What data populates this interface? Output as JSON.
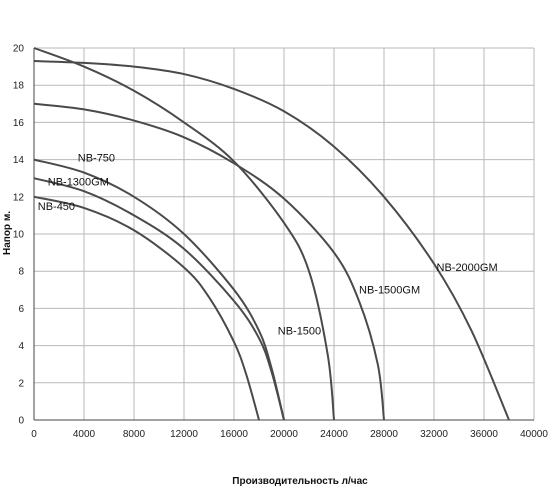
{
  "chart_data": {
    "type": "line",
    "title": "",
    "xlabel": "Производительность  л/час",
    "ylabel": "Напор м.",
    "xlim": [
      0,
      40000
    ],
    "ylim": [
      0,
      20
    ],
    "x_ticks": [
      0,
      4000,
      8000,
      12000,
      16000,
      20000,
      24000,
      28000,
      32000,
      36000,
      40000
    ],
    "y_ticks": [
      0,
      2,
      4,
      6,
      8,
      10,
      12,
      14,
      16,
      18,
      20
    ],
    "grid": true,
    "legend": "inline-labels",
    "series": [
      {
        "name": "NB-450",
        "x": [
          0,
          4000,
          8000,
          12000,
          14000,
          16000,
          17000,
          18000
        ],
        "y": [
          12,
          11.4,
          10.2,
          8.2,
          6.6,
          4.2,
          2.4,
          0
        ]
      },
      {
        "name": "NB-1300GM",
        "x": [
          0,
          4000,
          8000,
          12000,
          16000,
          18000,
          19000,
          20000
        ],
        "y": [
          13,
          12.3,
          11,
          9.2,
          6.4,
          4.4,
          2.6,
          0
        ]
      },
      {
        "name": "NB-750",
        "x": [
          0,
          4000,
          8000,
          12000,
          16000,
          18000,
          19000,
          20000
        ],
        "y": [
          14,
          13.3,
          12,
          10,
          7,
          4.8,
          2.8,
          0
        ]
      },
      {
        "name": "NB-1500",
        "x": [
          0,
          4000,
          8000,
          12000,
          16000,
          20000,
          22000,
          23500,
          24000
        ],
        "y": [
          20,
          19,
          17.7,
          16,
          13.9,
          10.6,
          8,
          3.5,
          0
        ]
      },
      {
        "name": "NB-1500GM",
        "x": [
          0,
          4000,
          8000,
          12000,
          16000,
          20000,
          24000,
          26000,
          27500,
          28000
        ],
        "y": [
          17,
          16.7,
          16.1,
          15.2,
          13.8,
          11.9,
          9,
          6.4,
          3,
          0
        ]
      },
      {
        "name": "NB-2000GM",
        "x": [
          0,
          4000,
          8000,
          12000,
          16000,
          20000,
          24000,
          28000,
          32000,
          35000,
          38000
        ],
        "y": [
          19.3,
          19.2,
          19,
          18.6,
          17.8,
          16.6,
          14.7,
          12,
          8.4,
          4.8,
          0
        ]
      }
    ],
    "labels": [
      {
        "series": "NB-450",
        "text": "NB-450",
        "x": 300,
        "y": 11.3
      },
      {
        "series": "NB-1300GM",
        "text": "NB-1300GM",
        "x": 1100,
        "y": 12.6
      },
      {
        "series": "NB-750",
        "text": "NB-750",
        "x": 3500,
        "y": 13.9
      },
      {
        "series": "NB-1500",
        "text": "NB-1500",
        "x": 19500,
        "y": 4.6
      },
      {
        "series": "NB-1500GM",
        "text": "NB-1500GM",
        "x": 26000,
        "y": 6.8
      },
      {
        "series": "NB-2000GM",
        "text": "NB-2000GM",
        "x": 32200,
        "y": 8.0
      }
    ],
    "colors": {
      "curve": "#4a4a4a",
      "grid": "#b9b9b9",
      "text": "#111111"
    }
  }
}
